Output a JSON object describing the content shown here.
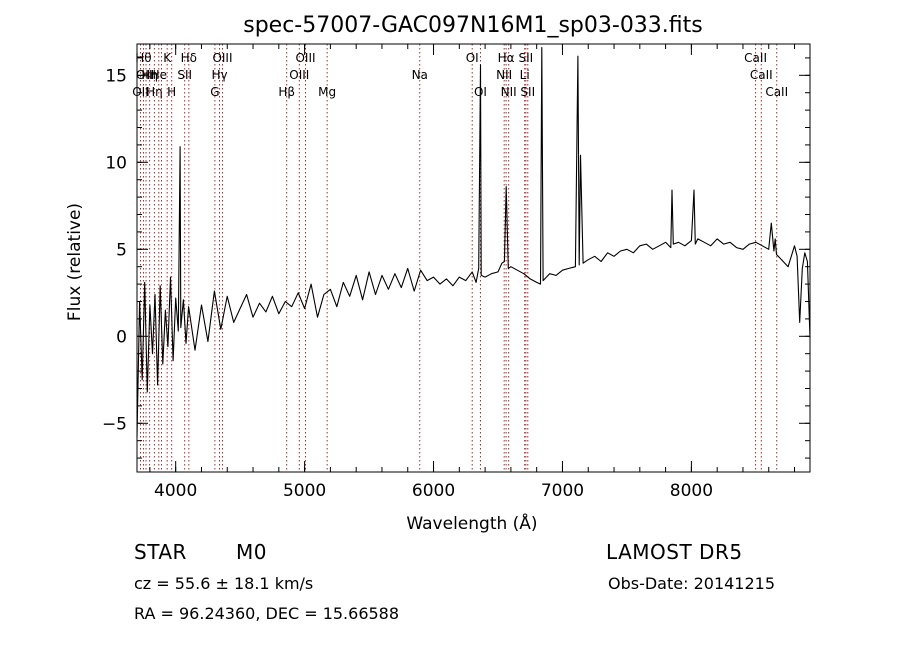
{
  "chart_data": {
    "type": "line",
    "title": "spec-57007-GAC097N16M1_sp03-033.fits",
    "xlabel": "Wavelength (Å)",
    "ylabel": "Flux (relative)",
    "xlim": [
      3700,
      8920
    ],
    "ylim": [
      -7.8,
      16.8
    ],
    "x_ticks": [
      4000,
      5000,
      6000,
      7000,
      8000
    ],
    "x_tick_labels": [
      "4000",
      "5000",
      "6000",
      "7000",
      "8000"
    ],
    "y_ticks": [
      -5,
      0,
      5,
      10,
      15
    ],
    "y_tick_labels": [
      "−5",
      "0",
      "5",
      "10",
      "15"
    ],
    "grid": false,
    "line_color": "#000000",
    "marker_color": "#a52a2a",
    "series": [
      {
        "x": [
          3700,
          3720,
          3740,
          3760,
          3780,
          3800,
          3820,
          3840,
          3860,
          3880,
          3900,
          3920,
          3940,
          3960,
          3980,
          4000,
          4020,
          4034,
          4040,
          4060,
          4080,
          4100,
          4150,
          4200,
          4250,
          4300,
          4350,
          4400,
          4450,
          4500,
          4550,
          4600,
          4650,
          4700,
          4750,
          4800,
          4850,
          4900,
          4950,
          5000,
          5050,
          5100,
          5150,
          5200,
          5250,
          5300,
          5350,
          5400,
          5450,
          5500,
          5550,
          5600,
          5650,
          5700,
          5750,
          5800,
          5850,
          5900,
          5950,
          6000,
          6050,
          6100,
          6150,
          6200,
          6250,
          6300,
          6330,
          6350,
          6364,
          6370,
          6400,
          6450,
          6500,
          6530,
          6550,
          6564,
          6580,
          6600,
          6650,
          6700,
          6750,
          6800,
          6830,
          6840,
          6850,
          6900,
          6950,
          7000,
          7050,
          7100,
          7120,
          7130,
          7140,
          7160,
          7200,
          7250,
          7300,
          7350,
          7400,
          7450,
          7500,
          7550,
          7600,
          7650,
          7700,
          7750,
          7800,
          7840,
          7850,
          7860,
          7900,
          7950,
          8000,
          8020,
          8030,
          8050,
          8100,
          8150,
          8200,
          8250,
          8300,
          8350,
          8400,
          8450,
          8500,
          8550,
          8600,
          8620,
          8640,
          8650,
          8660,
          8700,
          8750,
          8800,
          8820,
          8840,
          8860,
          8880,
          8900,
          8920
        ],
        "y": [
          -5.8,
          2.0,
          -2.5,
          3.1,
          -3.2,
          1.8,
          -1.0,
          2.4,
          -2.8,
          2.9,
          -1.6,
          1.5,
          -0.6,
          3.4,
          -1.4,
          2.2,
          0.3,
          10.9,
          0.5,
          2.1,
          -0.4,
          1.7,
          -0.8,
          1.8,
          -0.3,
          2.6,
          0.4,
          2.3,
          0.8,
          1.6,
          2.4,
          1.1,
          1.9,
          1.4,
          2.3,
          1.3,
          2.0,
          1.7,
          2.5,
          1.6,
          3.0,
          1.1,
          2.4,
          2.7,
          1.7,
          3.1,
          2.3,
          3.5,
          2.1,
          3.7,
          2.4,
          3.5,
          2.7,
          3.6,
          2.8,
          3.9,
          2.6,
          3.8,
          3.2,
          3.4,
          3.0,
          3.3,
          2.9,
          3.4,
          3.2,
          3.7,
          3.1,
          3.9,
          15.6,
          3.5,
          3.4,
          3.6,
          3.7,
          4.2,
          4.3,
          8.6,
          3.9,
          4.0,
          3.8,
          3.6,
          3.3,
          3.1,
          3.0,
          16.6,
          3.2,
          3.6,
          3.5,
          3.8,
          3.9,
          4.0,
          16.1,
          4.1,
          10.4,
          4.2,
          4.4,
          4.6,
          4.3,
          4.8,
          4.6,
          4.9,
          5.0,
          4.8,
          5.2,
          5.3,
          5.0,
          5.2,
          5.4,
          5.1,
          8.4,
          5.3,
          5.4,
          5.2,
          5.5,
          8.4,
          5.3,
          5.6,
          5.4,
          5.2,
          5.6,
          5.3,
          5.4,
          5.1,
          5.0,
          5.3,
          5.4,
          5.2,
          5.0,
          6.5,
          4.9,
          5.6,
          4.7,
          4.4,
          4.0,
          5.2,
          4.6,
          0.8,
          3.9,
          4.8,
          4.3,
          -0.1
        ]
      }
    ],
    "line_markers": [
      {
        "x": 3727,
        "row": 3,
        "label": "OII"
      },
      {
        "x": 3750,
        "row": 1,
        "label": "Hθ"
      },
      {
        "x": 3770,
        "row": 2,
        "label": "OIII"
      },
      {
        "x": 3798,
        "row": 2,
        "label": "Hη"
      },
      {
        "x": 3835,
        "row": 3,
        "label": "Hη"
      },
      {
        "x": 3869,
        "row": 2,
        "label": "He"
      },
      {
        "x": 3890,
        "row": 3,
        "label": ""
      },
      {
        "x": 3934,
        "row": 1,
        "label": "K"
      },
      {
        "x": 3969,
        "row": 3,
        "label": "H"
      },
      {
        "x": 4070,
        "row": 2,
        "label": "SII"
      },
      {
        "x": 4102,
        "row": 1,
        "label": "Hδ"
      },
      {
        "x": 4304,
        "row": 3,
        "label": "G"
      },
      {
        "x": 4340,
        "row": 2,
        "label": "Hγ"
      },
      {
        "x": 4363,
        "row": 1,
        "label": "OIII"
      },
      {
        "x": 4861,
        "row": 3,
        "label": "Hβ"
      },
      {
        "x": 4959,
        "row": 2,
        "label": "OIII"
      },
      {
        "x": 5007,
        "row": 1,
        "label": "OIII"
      },
      {
        "x": 5175,
        "row": 3,
        "label": "Mg"
      },
      {
        "x": 5893,
        "row": 2,
        "label": "Na"
      },
      {
        "x": 6300,
        "row": 1,
        "label": "OI"
      },
      {
        "x": 6364,
        "row": 3,
        "label": "OI"
      },
      {
        "x": 6548,
        "row": 2,
        "label": "NII"
      },
      {
        "x": 6563,
        "row": 1,
        "label": "Hα"
      },
      {
        "x": 6583,
        "row": 3,
        "label": "NII"
      },
      {
        "x": 6707,
        "row": 2,
        "label": "Li"
      },
      {
        "x": 6716,
        "row": 1,
        "label": "SII"
      },
      {
        "x": 6731,
        "row": 3,
        "label": "SII"
      },
      {
        "x": 8498,
        "row": 1,
        "label": "CaII"
      },
      {
        "x": 8542,
        "row": 2,
        "label": "CaII"
      },
      {
        "x": 8662,
        "row": 3,
        "label": "CaII"
      }
    ]
  },
  "info": {
    "object_type": "STAR",
    "subclass": "M0",
    "survey": "LAMOST DR5",
    "cz": "cz = 55.6 ± 18.1 km/s",
    "obs_date": "Obs-Date: 20141215",
    "coords": "RA =  96.24360, DEC =  15.66588"
  }
}
